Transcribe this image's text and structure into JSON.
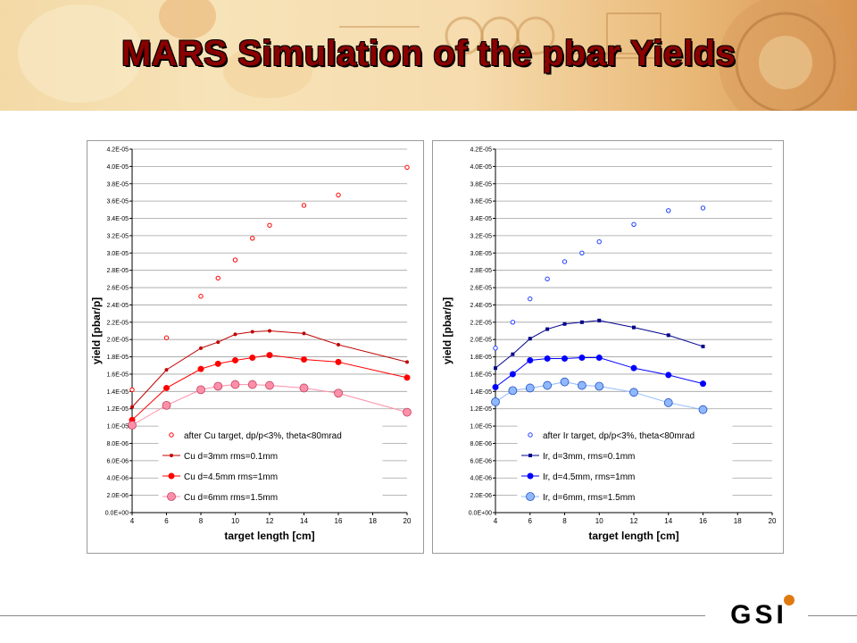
{
  "slide": {
    "title": "MARS Simulation of the pbar Yields",
    "logo_text": "GSI",
    "title_color": "#8b0000",
    "footer_line_color": "#888888"
  },
  "chart_data": [
    {
      "type": "line",
      "xlabel": "target length [cm]",
      "ylabel": "yield [pbar/p]",
      "xlim": [
        4,
        20
      ],
      "ylim": [
        0,
        4.2e-05
      ],
      "x_ticks": [
        "4",
        "6",
        "8",
        "10",
        "12",
        "14",
        "16",
        "18",
        "20"
      ],
      "y_ticks": [
        "0.0E+00",
        "2.0E-06",
        "4.0E-06",
        "6.0E-06",
        "8.0E-06",
        "1.0E-05",
        "1.2E-05",
        "1.4E-05",
        "1.6E-05",
        "1.8E-05",
        "2.0E-05",
        "2.2E-05",
        "2.4E-05",
        "2.6E-05",
        "2.8E-05",
        "3.0E-05",
        "3.2E-05",
        "3.4E-05",
        "3.6E-05",
        "3.8E-05",
        "4.0E-05",
        "4.2E-05"
      ],
      "grid": "horizontal",
      "legend_position": "bottom-center",
      "series": [
        {
          "name": "after Cu target, dp/p<3%, theta<80mrad",
          "color": "#ff0000",
          "marker": "open-circle",
          "x": [
            4,
            6,
            8,
            9,
            10,
            11,
            12,
            14,
            16,
            20
          ],
          "y": [
            1.42e-05,
            2.02e-05,
            2.5e-05,
            2.71e-05,
            2.92e-05,
            3.17e-05,
            3.32e-05,
            3.55e-05,
            3.67e-05,
            3.99e-05
          ]
        },
        {
          "name": "Cu d=3mm rms=0.1mm",
          "color": "#c00000",
          "marker": "small-dot",
          "x": [
            4,
            6,
            8,
            9,
            10,
            11,
            12,
            14,
            16,
            20
          ],
          "y": [
            1.22e-05,
            1.65e-05,
            1.9e-05,
            1.97e-05,
            2.06e-05,
            2.09e-05,
            2.1e-05,
            2.07e-05,
            1.94e-05,
            1.74e-05
          ]
        },
        {
          "name": "Cu d=4.5mm rms=1mm",
          "color": "#ff0000",
          "marker": "filled-circle",
          "x": [
            4,
            6,
            8,
            9,
            10,
            11,
            12,
            14,
            16,
            20
          ],
          "y": [
            1.07e-05,
            1.44e-05,
            1.66e-05,
            1.72e-05,
            1.76e-05,
            1.79e-05,
            1.82e-05,
            1.77e-05,
            1.74e-05,
            1.56e-05
          ]
        },
        {
          "name": "Cu d=6mm rms=1.5mm",
          "color": "#ff8fa8",
          "marker": "large-circle",
          "x": [
            4,
            6,
            8,
            9,
            10,
            11,
            12,
            14,
            16,
            20
          ],
          "y": [
            1.01e-05,
            1.24e-05,
            1.42e-05,
            1.46e-05,
            1.48e-05,
            1.48e-05,
            1.47e-05,
            1.44e-05,
            1.38e-05,
            1.16e-05
          ]
        }
      ]
    },
    {
      "type": "line",
      "xlabel": "target length [cm]",
      "ylabel": "yield [pbar/p]",
      "xlim": [
        4,
        20
      ],
      "ylim": [
        0,
        4.2e-05
      ],
      "x_ticks": [
        "4",
        "6",
        "8",
        "10",
        "12",
        "14",
        "16",
        "18",
        "20"
      ],
      "y_ticks": [
        "0.0E+00",
        "2.0E-06",
        "4.0E-06",
        "6.0E-06",
        "8.0E-06",
        "1.0E-05",
        "1.2E-05",
        "1.4E-05",
        "1.6E-05",
        "1.8E-05",
        "2.0E-05",
        "2.2E-05",
        "2.4E-05",
        "2.6E-05",
        "2.8E-05",
        "3.0E-05",
        "3.2E-05",
        "3.4E-05",
        "3.6E-05",
        "3.8E-05",
        "4.0E-05",
        "4.2E-05"
      ],
      "grid": "horizontal",
      "legend_position": "bottom-center",
      "series": [
        {
          "name": "after Ir target, dp/p<3%, theta<80mrad",
          "color": "#1f3fff",
          "marker": "open-circle",
          "x": [
            4,
            5,
            6,
            7,
            8,
            9,
            10,
            12,
            14,
            16
          ],
          "y": [
            1.9e-05,
            2.2e-05,
            2.47e-05,
            2.7e-05,
            2.9e-05,
            3e-05,
            3.13e-05,
            3.33e-05,
            3.49e-05,
            3.52e-05
          ]
        },
        {
          "name": "Ir, d=3mm, rms=0.1mm",
          "color": "#00008b",
          "marker": "small-square",
          "x": [
            4,
            5,
            6,
            7,
            8,
            9,
            10,
            12,
            14,
            16
          ],
          "y": [
            1.67e-05,
            1.83e-05,
            2.01e-05,
            2.12e-05,
            2.18e-05,
            2.2e-05,
            2.22e-05,
            2.14e-05,
            2.05e-05,
            1.92e-05
          ]
        },
        {
          "name": "Ir, d=4.5mm, rms=1mm",
          "color": "#0000ff",
          "marker": "filled-circle",
          "x": [
            4,
            5,
            6,
            7,
            8,
            9,
            10,
            12,
            14,
            16
          ],
          "y": [
            1.45e-05,
            1.6e-05,
            1.76e-05,
            1.78e-05,
            1.78e-05,
            1.79e-05,
            1.79e-05,
            1.67e-05,
            1.59e-05,
            1.49e-05
          ]
        },
        {
          "name": "Ir, d=6mm, rms=1.5mm",
          "color": "#8fb8ff",
          "marker": "large-circle",
          "x": [
            4,
            5,
            6,
            7,
            8,
            9,
            10,
            12,
            14,
            16
          ],
          "y": [
            1.28e-05,
            1.41e-05,
            1.44e-05,
            1.47e-05,
            1.51e-05,
            1.47e-05,
            1.46e-05,
            1.39e-05,
            1.27e-05,
            1.19e-05
          ]
        }
      ]
    }
  ]
}
